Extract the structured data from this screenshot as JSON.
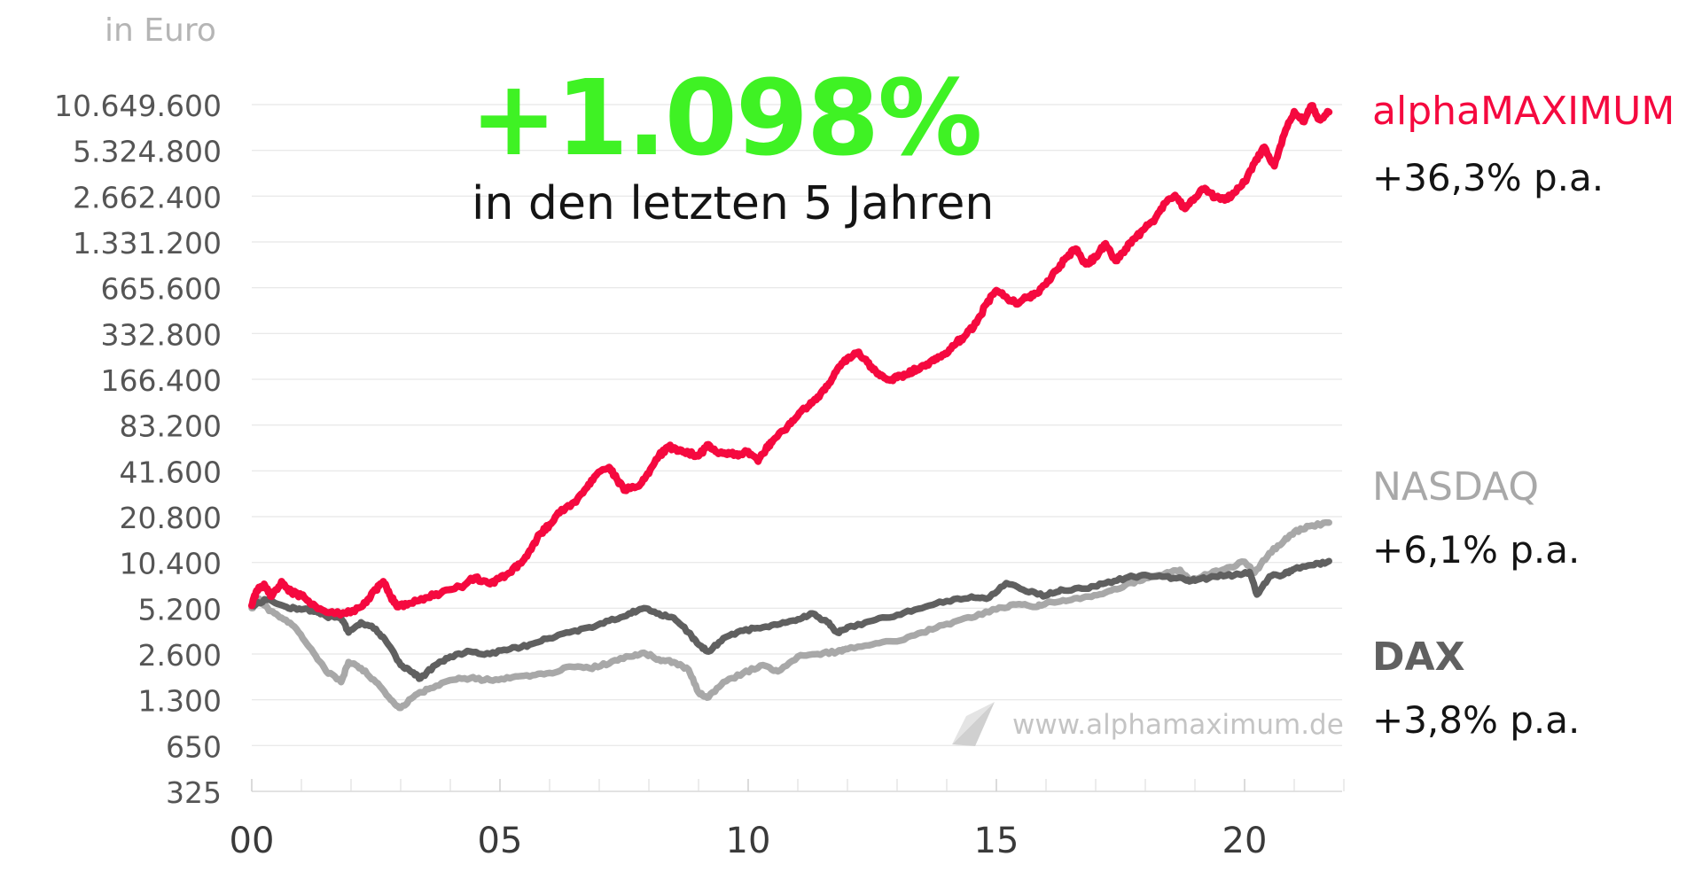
{
  "chart_data": {
    "type": "line",
    "unit_label": "in Euro",
    "headline": "+1.098%",
    "subheadline": "in den letzten 5 Jahren",
    "y_scale": "log",
    "ylim": [
      325,
      10649600
    ],
    "xlim": [
      2000,
      2022
    ],
    "grid": true,
    "y_ticks": [
      {
        "value": 10649600,
        "label": "10.649.600"
      },
      {
        "value": 5324800,
        "label": "5.324.800"
      },
      {
        "value": 2662400,
        "label": "2.662.400"
      },
      {
        "value": 1331200,
        "label": "1.331.200"
      },
      {
        "value": 665600,
        "label": "665.600"
      },
      {
        "value": 332800,
        "label": "332.800"
      },
      {
        "value": 166400,
        "label": "166.400"
      },
      {
        "value": 83200,
        "label": "83.200"
      },
      {
        "value": 41600,
        "label": "41.600"
      },
      {
        "value": 20800,
        "label": "20.800"
      },
      {
        "value": 10400,
        "label": "10.400"
      },
      {
        "value": 5200,
        "label": "5.200"
      },
      {
        "value": 2600,
        "label": "2.600"
      },
      {
        "value": 1300,
        "label": "1.300"
      },
      {
        "value": 650,
        "label": "650"
      },
      {
        "value": 325,
        "label": "325"
      }
    ],
    "x_ticks": [
      {
        "value": 2000,
        "label": "00"
      },
      {
        "value": 2005,
        "label": "05"
      },
      {
        "value": 2010,
        "label": "10"
      },
      {
        "value": 2015,
        "label": "15"
      },
      {
        "value": 2020,
        "label": "20"
      }
    ],
    "x_minor_ticks": [
      2001,
      2002,
      2003,
      2004,
      2006,
      2007,
      2008,
      2009,
      2011,
      2012,
      2013,
      2014,
      2016,
      2017,
      2018,
      2019,
      2021,
      2022
    ],
    "series": [
      {
        "name": "alphaMAXIMUM",
        "rate": "+36,3% p.a.",
        "color": "#f5093f",
        "points": [
          [
            2000.0,
            5400
          ],
          [
            2000.1,
            6800
          ],
          [
            2000.25,
            7500
          ],
          [
            2000.4,
            6200
          ],
          [
            2000.6,
            7800
          ],
          [
            2000.8,
            6600
          ],
          [
            2001.0,
            6300
          ],
          [
            2001.2,
            5500
          ],
          [
            2001.5,
            4900
          ],
          [
            2001.9,
            4800
          ],
          [
            2002.2,
            5300
          ],
          [
            2002.35,
            6000
          ],
          [
            2002.5,
            6900
          ],
          [
            2002.65,
            7800
          ],
          [
            2002.8,
            6200
          ],
          [
            2002.95,
            5300
          ],
          [
            2003.2,
            5600
          ],
          [
            2003.5,
            6100
          ],
          [
            2003.8,
            6500
          ],
          [
            2004.2,
            7200
          ],
          [
            2004.5,
            8300
          ],
          [
            2004.8,
            7500
          ],
          [
            2005.0,
            8200
          ],
          [
            2005.2,
            8900
          ],
          [
            2005.4,
            10200
          ],
          [
            2005.6,
            12500
          ],
          [
            2005.8,
            16000
          ],
          [
            2006.0,
            18500
          ],
          [
            2006.2,
            22000
          ],
          [
            2006.5,
            26000
          ],
          [
            2006.7,
            31000
          ],
          [
            2006.9,
            38000
          ],
          [
            2007.2,
            44000
          ],
          [
            2007.35,
            37000
          ],
          [
            2007.5,
            31000
          ],
          [
            2007.8,
            33000
          ],
          [
            2008.0,
            40000
          ],
          [
            2008.2,
            52000
          ],
          [
            2008.4,
            60000
          ],
          [
            2008.6,
            56000
          ],
          [
            2008.8,
            55000
          ],
          [
            2009.0,
            52000
          ],
          [
            2009.2,
            62000
          ],
          [
            2009.4,
            54000
          ],
          [
            2009.6,
            55000
          ],
          [
            2009.8,
            52000
          ],
          [
            2010.0,
            56000
          ],
          [
            2010.2,
            48000
          ],
          [
            2010.35,
            57000
          ],
          [
            2010.5,
            66000
          ],
          [
            2010.8,
            82000
          ],
          [
            2011.0,
            96000
          ],
          [
            2011.2,
            110000
          ],
          [
            2011.4,
            128000
          ],
          [
            2011.6,
            150000
          ],
          [
            2011.8,
            195000
          ],
          [
            2012.0,
            230000
          ],
          [
            2012.2,
            250000
          ],
          [
            2012.4,
            215000
          ],
          [
            2012.6,
            180000
          ],
          [
            2012.8,
            165000
          ],
          [
            2013.0,
            170000
          ],
          [
            2013.2,
            180000
          ],
          [
            2013.4,
            195000
          ],
          [
            2013.6,
            210000
          ],
          [
            2013.8,
            225000
          ],
          [
            2014.0,
            245000
          ],
          [
            2014.2,
            290000
          ],
          [
            2014.4,
            330000
          ],
          [
            2014.6,
            390000
          ],
          [
            2014.8,
            520000
          ],
          [
            2015.0,
            640000
          ],
          [
            2015.2,
            580000
          ],
          [
            2015.4,
            520000
          ],
          [
            2015.6,
            570000
          ],
          [
            2015.8,
            610000
          ],
          [
            2016.0,
            700000
          ],
          [
            2016.2,
            860000
          ],
          [
            2016.4,
            1050000
          ],
          [
            2016.6,
            1200000
          ],
          [
            2016.8,
            950000
          ],
          [
            2017.0,
            1050000
          ],
          [
            2017.2,
            1300000
          ],
          [
            2017.4,
            1000000
          ],
          [
            2017.6,
            1200000
          ],
          [
            2017.8,
            1400000
          ],
          [
            2018.0,
            1650000
          ],
          [
            2018.2,
            1900000
          ],
          [
            2018.4,
            2400000
          ],
          [
            2018.6,
            2700000
          ],
          [
            2018.8,
            2200000
          ],
          [
            2019.0,
            2600000
          ],
          [
            2019.2,
            3000000
          ],
          [
            2019.4,
            2600000
          ],
          [
            2019.6,
            2500000
          ],
          [
            2019.8,
            2800000
          ],
          [
            2020.0,
            3300000
          ],
          [
            2020.2,
            4400000
          ],
          [
            2020.4,
            5600000
          ],
          [
            2020.6,
            4200000
          ],
          [
            2020.8,
            6800000
          ],
          [
            2021.0,
            9600000
          ],
          [
            2021.2,
            8200000
          ],
          [
            2021.35,
            10500000
          ],
          [
            2021.5,
            8500000
          ],
          [
            2021.7,
            9500000
          ]
        ]
      },
      {
        "name": "NASDAQ",
        "rate": "+6,1% p.a.",
        "color": "#a8a8a8",
        "points": [
          [
            2000.0,
            5200
          ],
          [
            2000.15,
            6000
          ],
          [
            2000.35,
            5000
          ],
          [
            2000.6,
            4500
          ],
          [
            2000.9,
            3800
          ],
          [
            2001.2,
            2800
          ],
          [
            2001.5,
            2000
          ],
          [
            2001.8,
            1700
          ],
          [
            2001.95,
            2300
          ],
          [
            2002.2,
            2100
          ],
          [
            2002.5,
            1700
          ],
          [
            2002.8,
            1300
          ],
          [
            2003.0,
            1150
          ],
          [
            2003.3,
            1400
          ],
          [
            2003.6,
            1550
          ],
          [
            2004.0,
            1750
          ],
          [
            2004.4,
            1800
          ],
          [
            2004.8,
            1750
          ],
          [
            2005.2,
            1800
          ],
          [
            2005.6,
            1850
          ],
          [
            2006.0,
            1950
          ],
          [
            2006.4,
            2150
          ],
          [
            2006.8,
            2100
          ],
          [
            2007.2,
            2250
          ],
          [
            2007.6,
            2500
          ],
          [
            2007.9,
            2650
          ],
          [
            2008.2,
            2400
          ],
          [
            2008.5,
            2300
          ],
          [
            2008.8,
            2050
          ],
          [
            2009.0,
            1450
          ],
          [
            2009.2,
            1350
          ],
          [
            2009.5,
            1700
          ],
          [
            2009.9,
            1950
          ],
          [
            2010.3,
            2200
          ],
          [
            2010.6,
            2000
          ],
          [
            2011.0,
            2500
          ],
          [
            2011.4,
            2600
          ],
          [
            2011.8,
            2700
          ],
          [
            2012.0,
            2800
          ],
          [
            2012.5,
            3000
          ],
          [
            2013.0,
            3150
          ],
          [
            2013.5,
            3600
          ],
          [
            2014.0,
            4100
          ],
          [
            2014.5,
            4500
          ],
          [
            2015.0,
            5100
          ],
          [
            2015.4,
            5500
          ],
          [
            2015.8,
            5300
          ],
          [
            2016.0,
            5600
          ],
          [
            2016.4,
            5800
          ],
          [
            2016.8,
            6200
          ],
          [
            2017.2,
            6600
          ],
          [
            2017.6,
            7400
          ],
          [
            2018.0,
            8200
          ],
          [
            2018.4,
            8800
          ],
          [
            2018.7,
            9300
          ],
          [
            2018.9,
            7800
          ],
          [
            2019.2,
            8700
          ],
          [
            2019.6,
            9400
          ],
          [
            2020.0,
            10500
          ],
          [
            2020.2,
            8900
          ],
          [
            2020.5,
            12000
          ],
          [
            2020.8,
            14500
          ],
          [
            2021.0,
            16500
          ],
          [
            2021.3,
            18000
          ],
          [
            2021.7,
            19000
          ]
        ]
      },
      {
        "name": "DAX",
        "rate": "+3,8% p.a.",
        "color": "#606060",
        "points": [
          [
            2000.0,
            5400
          ],
          [
            2000.3,
            5900
          ],
          [
            2000.7,
            5300
          ],
          [
            2001.0,
            5100
          ],
          [
            2001.3,
            5000
          ],
          [
            2001.5,
            4600
          ],
          [
            2001.8,
            4500
          ],
          [
            2001.95,
            3600
          ],
          [
            2002.2,
            4200
          ],
          [
            2002.5,
            3800
          ],
          [
            2002.75,
            3000
          ],
          [
            2003.0,
            2200
          ],
          [
            2003.2,
            2000
          ],
          [
            2003.4,
            1800
          ],
          [
            2003.7,
            2200
          ],
          [
            2004.0,
            2500
          ],
          [
            2004.4,
            2700
          ],
          [
            2004.8,
            2600
          ],
          [
            2005.2,
            2800
          ],
          [
            2005.6,
            3000
          ],
          [
            2006.0,
            3300
          ],
          [
            2006.4,
            3600
          ],
          [
            2006.8,
            3900
          ],
          [
            2007.2,
            4300
          ],
          [
            2007.6,
            4800
          ],
          [
            2007.9,
            5200
          ],
          [
            2008.2,
            4800
          ],
          [
            2008.5,
            4500
          ],
          [
            2008.8,
            3600
          ],
          [
            2009.0,
            3000
          ],
          [
            2009.2,
            2700
          ],
          [
            2009.5,
            3300
          ],
          [
            2009.9,
            3700
          ],
          [
            2010.3,
            3900
          ],
          [
            2010.7,
            4200
          ],
          [
            2011.0,
            4400
          ],
          [
            2011.3,
            4800
          ],
          [
            2011.6,
            4200
          ],
          [
            2011.8,
            3600
          ],
          [
            2012.0,
            3900
          ],
          [
            2012.5,
            4300
          ],
          [
            2013.0,
            4700
          ],
          [
            2013.5,
            5200
          ],
          [
            2014.0,
            5800
          ],
          [
            2014.5,
            6200
          ],
          [
            2014.8,
            6000
          ],
          [
            2015.2,
            7600
          ],
          [
            2015.6,
            6700
          ],
          [
            2016.0,
            6300
          ],
          [
            2016.3,
            6900
          ],
          [
            2016.8,
            7000
          ],
          [
            2017.2,
            7600
          ],
          [
            2017.6,
            8200
          ],
          [
            2018.0,
            8600
          ],
          [
            2018.4,
            8400
          ],
          [
            2018.8,
            8000
          ],
          [
            2019.0,
            7900
          ],
          [
            2019.4,
            8400
          ],
          [
            2019.8,
            8600
          ],
          [
            2020.1,
            9000
          ],
          [
            2020.25,
            6400
          ],
          [
            2020.5,
            8400
          ],
          [
            2020.8,
            8700
          ],
          [
            2021.0,
            9400
          ],
          [
            2021.4,
            10000
          ],
          [
            2021.7,
            10600
          ]
        ]
      }
    ]
  },
  "watermark": {
    "text": "www.alphamaximum.de",
    "icon": "alphamaximum-logo-icon"
  }
}
